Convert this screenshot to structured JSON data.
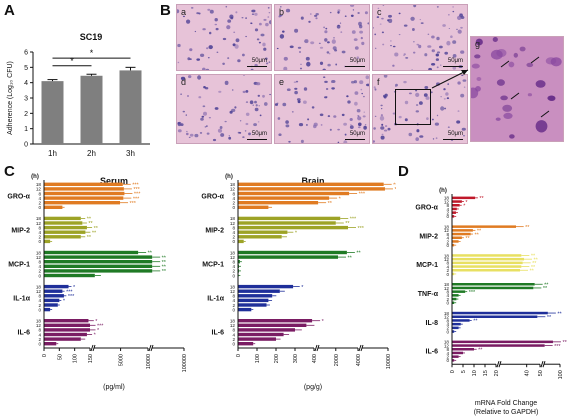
{
  "panel_labels": {
    "a": "A",
    "b": "B",
    "c": "C",
    "d": "D"
  },
  "micrographs": {
    "tiles": [
      {
        "letter": "a",
        "scale": "50μm"
      },
      {
        "letter": "b",
        "scale": "50μm"
      },
      {
        "letter": "c",
        "scale": "50μm"
      },
      {
        "letter": "d",
        "scale": "50μm"
      },
      {
        "letter": "e",
        "scale": "50μm"
      },
      {
        "letter": "f",
        "scale": "50μm"
      },
      {
        "letter": "g",
        "scale": ""
      }
    ]
  },
  "chart_data": [
    {
      "id": "A",
      "type": "bar",
      "title": "SC19",
      "ylabel": "Adherence (Log₁₀ CFU)",
      "categories": [
        "1h",
        "2h",
        "3h"
      ],
      "values": [
        4.1,
        4.45,
        4.8
      ],
      "errors": [
        0.1,
        0.1,
        0.2
      ],
      "ylim": [
        0,
        6
      ],
      "yticks": [
        0,
        1,
        2,
        3,
        4,
        5,
        6
      ],
      "significance": [
        {
          "from": "1h",
          "to": "2h",
          "label": "*"
        },
        {
          "from": "1h",
          "to": "3h",
          "label": "*"
        }
      ]
    },
    {
      "id": "C-serum",
      "type": "bar",
      "orientation": "horizontal",
      "title": "Serum",
      "xlabel": "(pg/ml)",
      "hour_label": "(h)",
      "hours": [
        "18",
        "12",
        "8",
        "4",
        "2",
        "0"
      ],
      "xticks": [
        "0",
        "50",
        "100",
        "150",
        "5000",
        "10000",
        "100000"
      ],
      "groups": [
        {
          "name": "GRO-α",
          "color": "#e07b22",
          "values": [
            5400,
            5600,
            5700,
            5500,
            4900,
            60
          ],
          "sig": [
            "***",
            "***",
            "***",
            "***",
            "***",
            ""
          ]
        },
        {
          "name": "MIP-2",
          "color": "#9da326",
          "values": [
            120,
            125,
            140,
            135,
            120,
            20
          ],
          "sig": [
            "**",
            "**",
            "**",
            "**",
            "**",
            ""
          ]
        },
        {
          "name": "MCP-1",
          "color": "#1f7a25",
          "values": [
            8200,
            10400,
            10500,
            10400,
            10600,
            300
          ],
          "sig": [
            "**",
            "**",
            "**",
            "**",
            "**",
            ""
          ]
        },
        {
          "name": "IL-1α",
          "color": "#1f2f9a",
          "values": [
            80,
            60,
            65,
            50,
            45,
            20
          ],
          "sig": [
            "*",
            "***",
            "***",
            "*",
            "",
            ""
          ]
        },
        {
          "name": "IL-6",
          "color": "#7a1c63",
          "values": [
            145,
            150,
            150,
            140,
            120,
            40
          ],
          "sig": [
            "*",
            "***",
            "*",
            "*",
            "",
            ""
          ]
        }
      ]
    },
    {
      "id": "C-brain",
      "type": "bar",
      "orientation": "horizontal",
      "title": "Brain",
      "xlabel": "(pg/g)",
      "hour_label": "(h)",
      "hours": [
        "18",
        "12",
        "8",
        "4",
        "2",
        "0"
      ],
      "xticks": [
        "0",
        "100",
        "200",
        "300",
        "400",
        "2000",
        "4000",
        "10000"
      ],
      "groups": [
        {
          "name": "GRO-α",
          "color": "#e07b22",
          "values": [
            9000,
            9300,
            3200,
            1400,
            410,
            160
          ],
          "sig": [
            "***",
            "***",
            "***",
            "*",
            "**",
            ""
          ]
        },
        {
          "name": "MIP-2",
          "color": "#9da326",
          "values": [
            2400,
            2000,
            3100,
            260,
            230,
            30
          ],
          "sig": [
            "***",
            "**",
            "***",
            "*",
            "",
            ""
          ]
        },
        {
          "name": "MCP-1",
          "color": "#1f7a25",
          "values": [
            3000,
            2200,
            10,
            5,
            5,
            2
          ],
          "sig": [
            "**",
            "**",
            "",
            "",
            "",
            ""
          ]
        },
        {
          "name": "IL-1α",
          "color": "#1f2f9a",
          "values": [
            290,
            220,
            180,
            160,
            150,
            70
          ],
          "sig": [
            "*",
            "",
            "",
            "",
            "",
            ""
          ]
        },
        {
          "name": "IL-6",
          "color": "#7a1c63",
          "values": [
            390,
            360,
            300,
            240,
            200,
            80
          ],
          "sig": [
            "*",
            "",
            "",
            "",
            "",
            ""
          ]
        }
      ]
    },
    {
      "id": "D",
      "type": "bar",
      "orientation": "horizontal",
      "xlabel": "mRNA Fold Change\n(Relative to GAPDH)",
      "hour_label": "(h)",
      "hours": [
        "18",
        "12",
        "8",
        "4",
        "2",
        "0"
      ],
      "xticks": [
        "0",
        "5",
        "10",
        "15",
        "20",
        "40",
        "50",
        "100"
      ],
      "groups": [
        {
          "name": "GRO-α",
          "color": "#c0182a",
          "values": [
            10.5,
            4.5,
            3.5,
            2.2,
            1.8,
            1
          ],
          "sig": [
            "**",
            "*",
            "*",
            "",
            "",
            ""
          ]
        },
        {
          "name": "MIP-2",
          "color": "#e07b22",
          "values": [
            32,
            9.5,
            8.5,
            4.5,
            3,
            1
          ],
          "sig": [
            "**",
            "**",
            "**",
            "**",
            "",
            ""
          ]
        },
        {
          "name": "MCP-1",
          "color": "#e8e062",
          "values": [
            36,
            38,
            37,
            36,
            35,
            1
          ],
          "sig": [
            "**",
            "**",
            "**",
            "**",
            "**",
            ""
          ]
        },
        {
          "name": "TNF-α",
          "color": "#1f7a25",
          "values": [
            46,
            45,
            6,
            3,
            2,
            1
          ],
          "sig": [
            "**",
            "**",
            "***",
            "",
            "",
            ""
          ]
        },
        {
          "name": "IL-8",
          "color": "#1f2f9a",
          "values": [
            62,
            48,
            8,
            4,
            3,
            1
          ],
          "sig": [
            "**",
            "**",
            "**",
            "",
            "",
            ""
          ]
        },
        {
          "name": "IL-6",
          "color": "#7a1c63",
          "values": [
            78,
            52,
            10,
            5,
            3,
            1
          ],
          "sig": [
            "***",
            "***",
            "**",
            "",
            "",
            ""
          ]
        }
      ]
    }
  ]
}
